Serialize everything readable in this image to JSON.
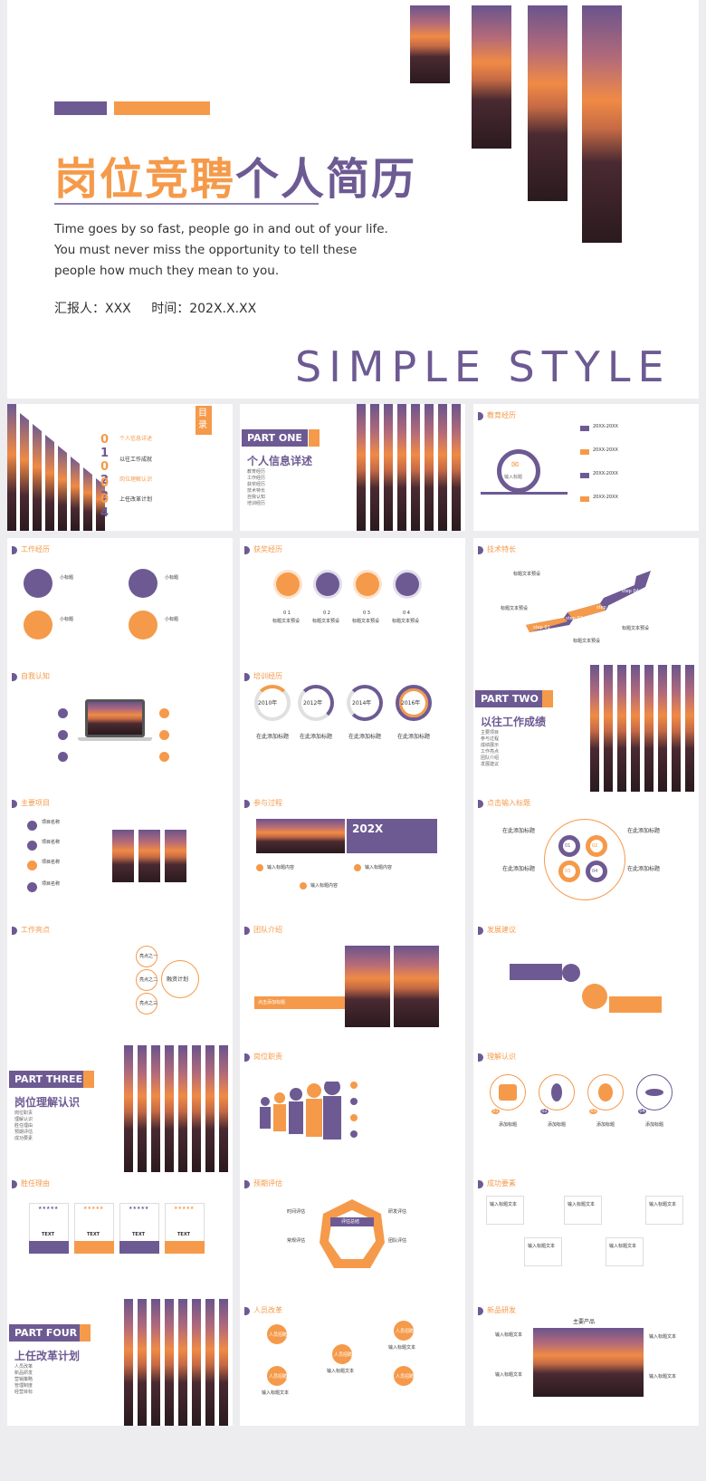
{
  "hero": {
    "title_orange": "岗位竞聘",
    "title_purple": "个人简历",
    "description": "Time goes by so fast, people go in and out of your life. You must never miss the opportunity to tell these people how much they mean to you.",
    "reporter": "汇报人：XXX",
    "time": "时间：202X.X.XX",
    "tagline": "SIMPLE STYLE"
  },
  "colors": {
    "purple": "#6d5a93",
    "orange": "#f59a4a"
  },
  "toc": {
    "label": "目录",
    "nums": [
      "0",
      "1",
      "0",
      "2",
      "0",
      "3",
      "0",
      "4"
    ],
    "items": [
      "个人信息详述",
      "以往工作成就",
      "岗位理解认识",
      "上任改革计划"
    ]
  },
  "part_one": {
    "tag": "PART ONE",
    "title": "个人信息详述",
    "items": [
      "教育经历",
      "工作经历",
      "获奖经历",
      "技术特长",
      "自我认知",
      "培训经历"
    ]
  },
  "part_two": {
    "tag": "PART TWO",
    "title": "以往工作成绩",
    "items": [
      "主要项目",
      "参与过程",
      "成绩展示",
      "工作亮点",
      "团队介绍",
      "发展建议"
    ]
  },
  "part_three": {
    "tag": "PART THREE",
    "title": "岗位理解认识",
    "items": [
      "岗位职责",
      "理解认识",
      "胜任理由",
      "预期评估",
      "成功要素"
    ]
  },
  "part_four": {
    "tag": "PART FOUR",
    "title": "上任改革计划",
    "items": [
      "人员改革",
      "新品研发",
      "营销策略",
      "管理制度",
      "经营目标"
    ]
  },
  "slide_titles": {
    "edu": "教育经历",
    "work": "工作经历",
    "award": "获奖经历",
    "skill": "技术特长",
    "self": "自我认知",
    "train": "培训经历",
    "project": "主要项目",
    "process": "参与过程",
    "result": "点击输入标题",
    "highlight": "工作亮点",
    "team": "团队介绍",
    "advice": "发展建议",
    "duty": "岗位职责",
    "understand": "理解认识",
    "reason": "胜任理由",
    "expect": "预期评估",
    "success": "成功要素",
    "reform": "人员改革",
    "newproduct": "新品研发"
  },
  "edu": {
    "center": "输入标题",
    "years": [
      "20XX-20XX",
      "20XX-20XX",
      "20XX-20XX",
      "20XX-20XX"
    ]
  },
  "work": {
    "label": "小标题"
  },
  "award": {
    "nums": [
      "0 1",
      "0 2",
      "0 3",
      "0 4"
    ],
    "label": "标题文本预设"
  },
  "skill": {
    "steps": [
      "step 01",
      "step 02",
      "step 03",
      "step 04"
    ],
    "label": "标题文本预设"
  },
  "train": {
    "years": [
      "2010年",
      "2012年",
      "2014年",
      "2016年"
    ],
    "label": "在此添加标题"
  },
  "project": {
    "label": "项目名称"
  },
  "process": {
    "year": "202X",
    "label": "输入标题内容"
  },
  "result": {
    "label": "在此添加标题",
    "nums": [
      "01",
      "02",
      "03",
      "04"
    ]
  },
  "highlight": {
    "nodes": [
      "亮点之一",
      "亮点之二",
      "亮点之三"
    ],
    "center": "融资计划"
  },
  "team": {
    "bar_text": "点击添加标题"
  },
  "understand": {
    "nums": [
      "01",
      "02",
      "03",
      "04"
    ],
    "label": "添加标题"
  },
  "reason": {
    "stars": "★★★★★",
    "text": "TEXT"
  },
  "expect": {
    "center": "评估总结",
    "labels": [
      "时间评估",
      "研发评估",
      "常规评估",
      "团队评估"
    ]
  },
  "success": {
    "label": "输入标题文本"
  },
  "reform": {
    "label": "人员招聘",
    "box": "输入标题文本"
  },
  "newproduct": {
    "title": "主要产品",
    "label": "输入标题文本"
  }
}
